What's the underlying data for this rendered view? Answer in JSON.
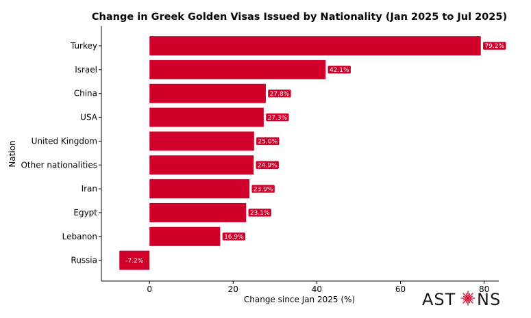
{
  "chart_data": {
    "type": "bar",
    "orientation": "horizontal",
    "title": "Change in Greek Golden Visas Issued by Nationality (Jan 2025 to Jul 2025)",
    "xlabel": "Change since Jan 2025 (%)",
    "ylabel": "Nation",
    "categories": [
      "Turkey",
      "Israel",
      "China",
      "USA",
      "United Kingdom",
      "Other nationalities",
      "Iran",
      "Egypt",
      "Lebanon",
      "Russia"
    ],
    "values": [
      79.2,
      42.1,
      27.8,
      27.3,
      25.0,
      24.9,
      23.9,
      23.1,
      16.9,
      -7.2
    ],
    "value_labels": [
      "79.2%",
      "42.1%",
      "27.8%",
      "27.3%",
      "25.0%",
      "24.9%",
      "23.9%",
      "23.1%",
      "16.9%",
      "-7.2%"
    ],
    "xlim": [
      -11.5,
      83.5
    ],
    "xticks": [
      0,
      20,
      40,
      60,
      80
    ],
    "grid": false,
    "bar_color": "#d0002a"
  },
  "logo": {
    "text_left": "AST",
    "text_right": "NS",
    "color": "#1a1a1a",
    "accent": "#d0002a"
  }
}
